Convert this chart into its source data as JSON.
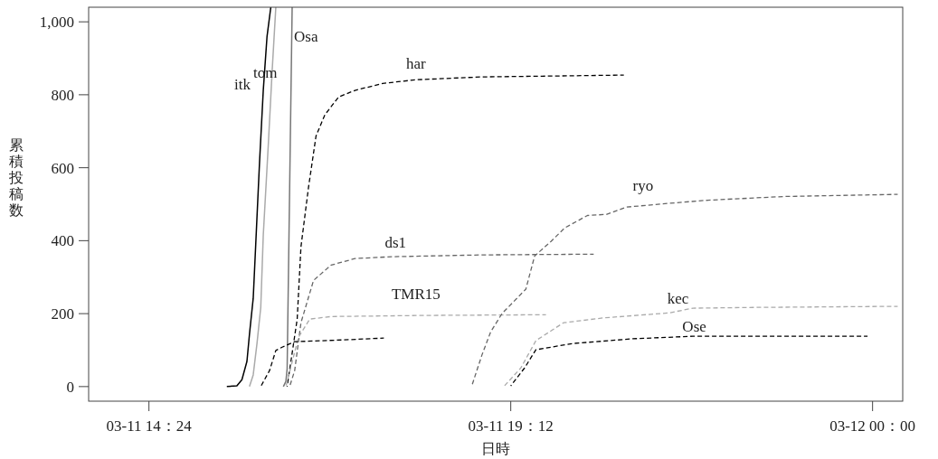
{
  "chart_data": {
    "type": "line",
    "xlabel": "日時",
    "ylabel": "累積投稿数",
    "xlim": [
      "--03-11T13:36",
      "--03-12T00:24"
    ],
    "xticks": [
      {
        "value": "--03-11T14:24",
        "label": "03-11 14：24"
      },
      {
        "value": "--03-11T19:12",
        "label": "03-11 19：12"
      },
      {
        "value": "--03-12T00:00",
        "label": "03-12 00：00"
      }
    ],
    "ylim": [
      -40,
      1040
    ],
    "yticks": [
      0,
      200,
      400,
      600,
      800,
      {
        "value": 1000,
        "label": "1,000"
      }
    ],
    "series": [
      {
        "name": "itk",
        "color": "#000000",
        "line_style": "solid",
        "x": [
          "--03-11T15:26",
          "--03-11T15:34",
          "--03-11T15:38",
          "--03-11T15:42",
          "--03-11T15:44",
          "--03-11T15:47",
          "--03-11T15:49",
          "--03-11T15:52",
          "--03-11T15:55",
          "--03-11T15:58",
          "--03-11T16:01"
        ],
        "values": [
          0,
          2,
          19,
          69,
          143,
          242,
          390,
          613,
          812,
          960,
          1040
        ]
      },
      {
        "name": "tom",
        "color": "#aaaaaa",
        "line_style": "solid",
        "x": [
          "--03-11T15:44",
          "--03-11T15:47",
          "--03-11T15:50",
          "--03-11T15:53",
          "--03-11T15:55",
          "--03-11T15:59",
          "--03-11T16:02",
          "--03-11T16:05"
        ],
        "values": [
          0,
          32,
          118,
          217,
          415,
          663,
          861,
          1040
        ]
      },
      {
        "name": "Osa",
        "color": "#777777",
        "line_style": "solid",
        "x": [
          "--03-11T16:11",
          "--03-11T16:13",
          "--03-11T16:14",
          "--03-11T16:18"
        ],
        "values": [
          0,
          14,
          49,
          1040
        ]
      },
      {
        "name": "har",
        "color": "#000000",
        "line_style": "dashed",
        "x": [
          "--03-11T16:14",
          "--03-11T16:17",
          "--03-11T16:22",
          "--03-11T16:25",
          "--03-11T16:31",
          "--03-11T16:37",
          "--03-11T16:44",
          "--03-11T16:55",
          "--03-11T17:08",
          "--03-11T17:30",
          "--03-11T17:56",
          "--03-11T18:49",
          "--03-11T19:37",
          "--03-11T20:42"
        ],
        "values": [
          0,
          69,
          185,
          383,
          546,
          687,
          745,
          794,
          812,
          831,
          841,
          849,
          851,
          854
        ]
      },
      {
        "name": "ds1",
        "color": "#666666",
        "line_style": "dashed",
        "x": [
          "--03-11T16:16",
          "--03-11T16:20",
          "--03-11T16:25",
          "--03-11T16:35",
          "--03-11T16:49",
          "--03-11T17:08",
          "--03-11T17:37",
          "--03-11T18:49",
          "--03-11T20:18"
        ],
        "values": [
          0,
          44,
          175,
          291,
          333,
          351,
          356,
          361,
          363
        ]
      },
      {
        "name": "TMR15",
        "color": "#aaaaaa",
        "line_style": "dashed",
        "x": [
          "--03-11T16:13",
          "--03-11T16:23",
          "--03-11T16:32",
          "--03-11T16:49",
          "--03-11T18:01",
          "--03-11T19:40"
        ],
        "values": [
          0,
          135,
          185,
          192,
          195,
          197
        ]
      },
      {
        "color": "#000000",
        "line_style": "dashed",
        "x": [
          "--03-11T15:53",
          "--03-11T16:00",
          "--03-11T16:05",
          "--03-11T16:10",
          "--03-11T16:20",
          "--03-11T16:59",
          "--03-11T17:31"
        ],
        "values": [
          0,
          44,
          99,
          108,
          123,
          128,
          133
        ]
      },
      {
        "name": "ryo",
        "color": "#666666",
        "line_style": "dashed",
        "x": [
          "--03-11T18:41",
          "--03-11T18:49",
          "--03-11T18:56",
          "--03-11T19:05",
          "--03-11T19:24",
          "--03-11T19:31",
          "--03-11T19:44",
          "--03-11T19:55",
          "--03-11T20:13",
          "--03-11T20:28",
          "--03-11T20:44",
          "--03-11T21:13",
          "--03-11T21:49",
          "--03-11T22:49",
          "--03-12T00:20"
        ],
        "values": [
          2,
          86,
          150,
          200,
          267,
          358,
          398,
          435,
          469,
          472,
          492,
          501,
          511,
          521,
          527
        ]
      },
      {
        "name": "kec",
        "color": "#aaaaaa",
        "line_style": "dashed",
        "x": [
          "--03-11T19:07",
          "--03-11T19:20",
          "--03-11T19:32",
          "--03-11T19:54",
          "--03-11T20:25",
          "--03-11T21:18",
          "--03-11T21:37",
          "--03-11T22:25",
          "--03-12T00:20"
        ],
        "values": [
          2,
          51,
          126,
          175,
          188,
          202,
          215,
          217,
          220
        ]
      },
      {
        "name": "Ose",
        "color": "#000000",
        "line_style": "dashed",
        "x": [
          "--03-11T19:12",
          "--03-11T19:23",
          "--03-11T19:32",
          "--03-11T20:01",
          "--03-11T20:49",
          "--03-11T21:37",
          "--03-11T23:56"
        ],
        "values": [
          2,
          51,
          101,
          118,
          131,
          138,
          138
        ]
      }
    ]
  }
}
